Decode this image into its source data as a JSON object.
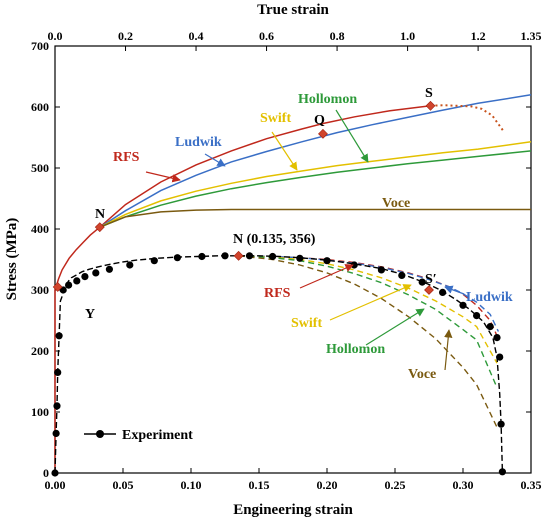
{
  "chart_data": {
    "type": "line",
    "title": "",
    "x_bottom": {
      "label": "Engineering strain",
      "range": [
        0,
        0.35
      ],
      "ticks": [
        "0.00",
        "0.05",
        "0.10",
        "0.15",
        "0.20",
        "0.25",
        "0.30",
        "0.35"
      ]
    },
    "x_top": {
      "label": "True strain",
      "range": [
        0,
        1.35
      ],
      "ticks": [
        "0.0",
        "0.2",
        "0.4",
        "0.6",
        "0.8",
        "1.0",
        "1.2",
        "1.35"
      ]
    },
    "y": {
      "label": "Stress (MPa)",
      "range": [
        0,
        700
      ],
      "ticks": [
        "0",
        "100",
        "200",
        "300",
        "400",
        "500",
        "600",
        "700"
      ]
    },
    "grid": false,
    "legend": {
      "position": "bottom-left",
      "entries": [
        "Experiment"
      ]
    },
    "colors": {
      "RFS": "#c0281c",
      "Ludwik": "#3a6fc6",
      "Swift": "#e3c000",
      "Hollomon": "#2e9a3a",
      "Voce": "#7a5a10",
      "Experiment": "#000000",
      "marker_points": "#d0442c",
      "necking_true": "#c8541e"
    },
    "true_curves": [
      {
        "name": "RFS",
        "x": [
          0,
          0.0,
          0.01,
          0.02,
          0.04,
          0.06,
          0.08,
          0.1,
          0.127,
          0.2,
          0.3,
          0.4,
          0.5,
          0.6,
          0.7,
          0.76,
          0.85,
          0.95,
          1.065
        ],
        "y": [
          0,
          300,
          318,
          333,
          352,
          366,
          378,
          390,
          403,
          440,
          477,
          505,
          528,
          548,
          564,
          573,
          584,
          594,
          602
        ]
      },
      {
        "name": "Ludwik",
        "x": [
          0.127,
          0.2,
          0.3,
          0.4,
          0.5,
          0.6,
          0.7,
          0.8,
          0.9,
          1.0,
          1.1,
          1.2,
          1.35
        ],
        "y": [
          403,
          430,
          463,
          488,
          510,
          527,
          543,
          558,
          571,
          583,
          595,
          606,
          620
        ]
      },
      {
        "name": "Swift",
        "x": [
          0.127,
          0.2,
          0.3,
          0.4,
          0.5,
          0.6,
          0.7,
          0.8,
          0.9,
          1.0,
          1.1,
          1.2,
          1.35
        ],
        "y": [
          403,
          424,
          446,
          462,
          475,
          486,
          495,
          504,
          511,
          518,
          525,
          531,
          543
        ]
      },
      {
        "name": "Hollomon",
        "x": [
          0.127,
          0.2,
          0.3,
          0.4,
          0.5,
          0.6,
          0.7,
          0.8,
          0.9,
          1.0,
          1.1,
          1.2,
          1.35
        ],
        "y": [
          403,
          420,
          439,
          454,
          466,
          476,
          485,
          493,
          500,
          507,
          513,
          519,
          528
        ]
      },
      {
        "name": "Voce",
        "x": [
          0.127,
          0.2,
          0.3,
          0.4,
          0.5,
          0.6,
          0.8,
          1.0,
          1.35
        ],
        "y": [
          403,
          420,
          428,
          431,
          432,
          432,
          432,
          432,
          432
        ]
      }
    ],
    "necking_true": {
      "x": [
        1.065,
        1.1,
        1.14,
        1.18,
        1.21,
        1.24,
        1.27
      ],
      "y": [
        602,
        603,
        602,
        601,
        597,
        586,
        562
      ]
    },
    "true_points": [
      {
        "label": "N",
        "x": 0.127,
        "y": 403
      },
      {
        "label": "Q",
        "x": 0.76,
        "y": 556
      },
      {
        "label": "S",
        "x": 1.065,
        "y": 602
      }
    ],
    "experiment": {
      "name": "Experiment",
      "x": [
        0.0,
        0.0008,
        0.0015,
        0.002,
        0.003,
        0.004,
        0.005,
        0.006,
        0.008,
        0.01,
        0.012,
        0.016,
        0.02,
        0.025,
        0.032,
        0.04,
        0.05,
        0.06,
        0.075,
        0.09,
        0.105,
        0.12,
        0.135,
        0.15,
        0.165,
        0.18,
        0.195,
        0.21,
        0.225,
        0.24,
        0.255,
        0.265,
        0.275,
        0.285,
        0.295,
        0.305,
        0.315,
        0.322,
        0.325,
        0.327,
        0.328,
        0.329
      ],
      "y": [
        0,
        65,
        110,
        165,
        225,
        282,
        288,
        300,
        307,
        315,
        320,
        325,
        330,
        334,
        338,
        342,
        346,
        349,
        352,
        354,
        355,
        356,
        356,
        356,
        355,
        353,
        350,
        346,
        341,
        335,
        326,
        318,
        309,
        298,
        284,
        268,
        248,
        222,
        190,
        130,
        80,
        2
      ]
    },
    "experiment_markers": [
      [
        0.0,
        0
      ],
      [
        0.0008,
        65
      ],
      [
        0.0015,
        110
      ],
      [
        0.002,
        165
      ],
      [
        0.003,
        225
      ],
      [
        0.006,
        300
      ],
      [
        0.01,
        308
      ],
      [
        0.016,
        315
      ],
      [
        0.022,
        322
      ],
      [
        0.03,
        328
      ],
      [
        0.04,
        334
      ],
      [
        0.055,
        341
      ],
      [
        0.073,
        348
      ],
      [
        0.09,
        353
      ],
      [
        0.108,
        355
      ],
      [
        0.125,
        356
      ],
      [
        0.143,
        356
      ],
      [
        0.16,
        355
      ],
      [
        0.18,
        352
      ],
      [
        0.2,
        348
      ],
      [
        0.22,
        341
      ],
      [
        0.24,
        333
      ],
      [
        0.255,
        324
      ],
      [
        0.27,
        313
      ],
      [
        0.285,
        296
      ],
      [
        0.3,
        275
      ],
      [
        0.31,
        258
      ],
      [
        0.32,
        240
      ],
      [
        0.325,
        222
      ],
      [
        0.327,
        190
      ],
      [
        0.328,
        80
      ],
      [
        0.329,
        2
      ]
    ],
    "eng_curves": [
      {
        "name": "RFS",
        "x": [
          0.135,
          0.16,
          0.18,
          0.2,
          0.22,
          0.24,
          0.26,
          0.275,
          0.29,
          0.3,
          0.31,
          0.32,
          0.325
        ],
        "y": [
          356,
          355,
          353,
          350,
          345,
          338,
          328,
          318,
          305,
          293,
          275,
          250,
          225
        ]
      },
      {
        "name": "Ludwik",
        "x": [
          0.135,
          0.16,
          0.18,
          0.2,
          0.22,
          0.24,
          0.26,
          0.275,
          0.29,
          0.3,
          0.31,
          0.32,
          0.326
        ],
        "y": [
          356,
          355,
          353,
          349,
          344,
          337,
          327,
          317,
          305,
          294,
          280,
          260,
          232
        ]
      },
      {
        "name": "Swift",
        "x": [
          0.135,
          0.16,
          0.18,
          0.2,
          0.22,
          0.24,
          0.26,
          0.28,
          0.3,
          0.31,
          0.325
        ],
        "y": [
          356,
          354,
          350,
          343,
          333,
          320,
          303,
          282,
          256,
          240,
          180
        ]
      },
      {
        "name": "Hollomon",
        "x": [
          0.135,
          0.16,
          0.18,
          0.2,
          0.22,
          0.24,
          0.26,
          0.28,
          0.3,
          0.31,
          0.325
        ],
        "y": [
          356,
          353,
          348,
          339,
          327,
          312,
          292,
          268,
          235,
          218,
          140
        ]
      },
      {
        "name": "Voce",
        "x": [
          0.135,
          0.16,
          0.18,
          0.2,
          0.22,
          0.24,
          0.26,
          0.28,
          0.3,
          0.31,
          0.325
        ],
        "y": [
          356,
          350,
          341,
          328,
          310,
          286,
          256,
          220,
          173,
          145,
          75
        ]
      }
    ],
    "eng_points": [
      {
        "label": "N (0.135, 356)",
        "x": 0.135,
        "y": 356
      },
      {
        "label": "S′",
        "x": 0.275,
        "y": 300
      }
    ],
    "annotations": [
      {
        "text": "RFS",
        "color": "#c0281c"
      },
      {
        "text": "Ludwik",
        "color": "#3a6fc6"
      },
      {
        "text": "Swift",
        "color": "#e3c000"
      },
      {
        "text": "Hollomon",
        "color": "#2e9a3a"
      },
      {
        "text": "Voce",
        "color": "#7a5a10"
      },
      {
        "text": "N",
        "color": "#000000"
      },
      {
        "text": "Q",
        "color": "#000000"
      },
      {
        "text": "S",
        "color": "#000000"
      },
      {
        "text": "RFS",
        "color": "#c0281c"
      },
      {
        "text": "Ludwik",
        "color": "#3a6fc6"
      },
      {
        "text": "Swift",
        "color": "#e3c000"
      },
      {
        "text": "Hollomon",
        "color": "#2e9a3a"
      },
      {
        "text": "Voce",
        "color": "#7a5a10"
      },
      {
        "text": "N (0.135, 356)",
        "color": "#000000"
      },
      {
        "text": "S′",
        "color": "#000000"
      },
      {
        "text": "Y",
        "color": "#000000"
      }
    ]
  }
}
